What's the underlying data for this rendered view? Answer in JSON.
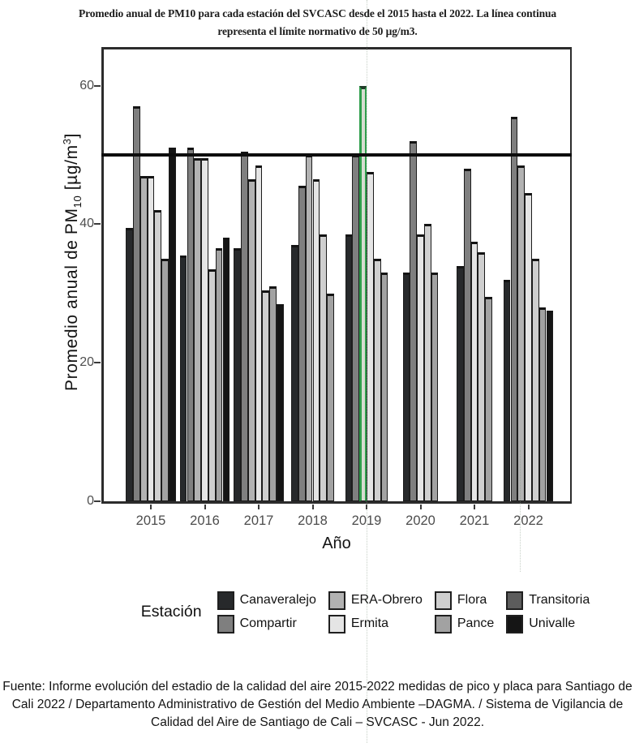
{
  "title": {
    "line1": "Promedio anual de PM10 para cada estación del SVCASC desde el 2015 hasta el 2022. La línea continua",
    "line2": "representa el límite normativo de 50 µg/m3."
  },
  "source_note": "Fuente: Informe evolución del estadio de la calidad del aire 2015-2022 medidas de pico y placa para Santiago de Cali 2022 / Departamento Administrativo de Gestión del Medio Ambiente –DAGMA. / Sistema de Vigilancia de Calidad del Aire de Santiago de Cali – SVCASC - Jun 2022.",
  "chart_data": {
    "type": "bar",
    "xlabel": "Año",
    "ylabel_text": "Promedio anual de PM10 [µg/m3]",
    "ylabel_parts": {
      "prefix": "Promedio anual de  PM",
      "sub": "10",
      "mid": " [µg/m",
      "sup": "3",
      "suffix": "]"
    },
    "ylim": [
      0,
      64
    ],
    "yticks": [
      0,
      20,
      40,
      60
    ],
    "limit_line_value": 50,
    "grid": false,
    "legend_title": "Estación",
    "legend_position": "bottom",
    "stations": [
      {
        "name": "Canaveralejo",
        "color": "#27292b"
      },
      {
        "name": "Compartir",
        "color": "#7f7f7f"
      },
      {
        "name": "ERA-Obrero",
        "color": "#b2b2b2"
      },
      {
        "name": "Ermita",
        "color": "#e5e5e5"
      },
      {
        "name": "Flora",
        "color": "#cfcfcf"
      },
      {
        "name": "Pance",
        "color": "#a2a2a2"
      },
      {
        "name": "Transitoria",
        "color": "#5c5c5c"
      },
      {
        "name": "Univalle",
        "color": "#151515"
      }
    ],
    "highlight_bar": {
      "year": "2019",
      "station": "Transitoria",
      "fill": "#d7ddd1",
      "edge": "#2f9e4c",
      "cap": "#223c2a"
    },
    "groups": [
      {
        "year": "2015",
        "bars": [
          {
            "s": "Canaveralejo",
            "v": 39.5
          },
          {
            "s": "Compartir",
            "v": 57
          },
          {
            "s": "ERA-Obrero",
            "v": 47
          },
          {
            "s": "Ermita",
            "v": 47
          },
          {
            "s": "Flora",
            "v": 42
          },
          {
            "s": "Pance",
            "v": 35
          },
          {
            "s": "Univalle",
            "v": 51
          }
        ]
      },
      {
        "year": "2016",
        "bars": [
          {
            "s": "Canaveralejo",
            "v": 35.5
          },
          {
            "s": "Compartir",
            "v": 51
          },
          {
            "s": "ERA-Obrero",
            "v": 49.5
          },
          {
            "s": "Ermita",
            "v": 49.5
          },
          {
            "s": "Flora",
            "v": 33.5
          },
          {
            "s": "Pance",
            "v": 36.5
          },
          {
            "s": "Univalle",
            "v": 38
          }
        ]
      },
      {
        "year": "2017",
        "bars": [
          {
            "s": "Canaveralejo",
            "v": 36.5
          },
          {
            "s": "Compartir",
            "v": 50.5
          },
          {
            "s": "ERA-Obrero",
            "v": 46.5
          },
          {
            "s": "Ermita",
            "v": 48.5
          },
          {
            "s": "Flora",
            "v": 30.5
          },
          {
            "s": "Pance",
            "v": 31
          },
          {
            "s": "Univalle",
            "v": 28.5
          }
        ]
      },
      {
        "year": "2018",
        "bars": [
          {
            "s": "Canaveralejo",
            "v": 37
          },
          {
            "s": "Compartir",
            "v": 45.5
          },
          {
            "s": "ERA-Obrero",
            "v": 50
          },
          {
            "s": "Ermita",
            "v": 46.5
          },
          {
            "s": "Flora",
            "v": 38.5
          },
          {
            "s": "Pance",
            "v": 30
          }
        ]
      },
      {
        "year": "2019",
        "bars": [
          {
            "s": "Canaveralejo",
            "v": 38.5
          },
          {
            "s": "Compartir",
            "v": 50
          },
          {
            "s": "Transitoria",
            "v": 60,
            "hl": true
          },
          {
            "s": "Ermita",
            "v": 47.5
          },
          {
            "s": "Flora",
            "v": 35
          },
          {
            "s": "Pance",
            "v": 33
          }
        ]
      },
      {
        "year": "2020",
        "bars": [
          {
            "s": "Canaveralejo",
            "v": 33
          },
          {
            "s": "Compartir",
            "v": 52
          },
          {
            "s": "Ermita",
            "v": 38.5
          },
          {
            "s": "Flora",
            "v": 40
          },
          {
            "s": "Pance",
            "v": 33
          }
        ]
      },
      {
        "year": "2021",
        "bars": [
          {
            "s": "Canaveralejo",
            "v": 34
          },
          {
            "s": "Compartir",
            "v": 48
          },
          {
            "s": "Ermita",
            "v": 37.5
          },
          {
            "s": "Flora",
            "v": 36
          },
          {
            "s": "Pance",
            "v": 29.5
          }
        ]
      },
      {
        "year": "2022",
        "bars": [
          {
            "s": "Canaveralejo",
            "v": 32
          },
          {
            "s": "Compartir",
            "v": 55.5
          },
          {
            "s": "ERA-Obrero",
            "v": 48.5
          },
          {
            "s": "Ermita",
            "v": 44.5
          },
          {
            "s": "Flora",
            "v": 35
          },
          {
            "s": "Pance",
            "v": 28
          },
          {
            "s": "Univalle",
            "v": 27.5
          }
        ]
      }
    ]
  }
}
